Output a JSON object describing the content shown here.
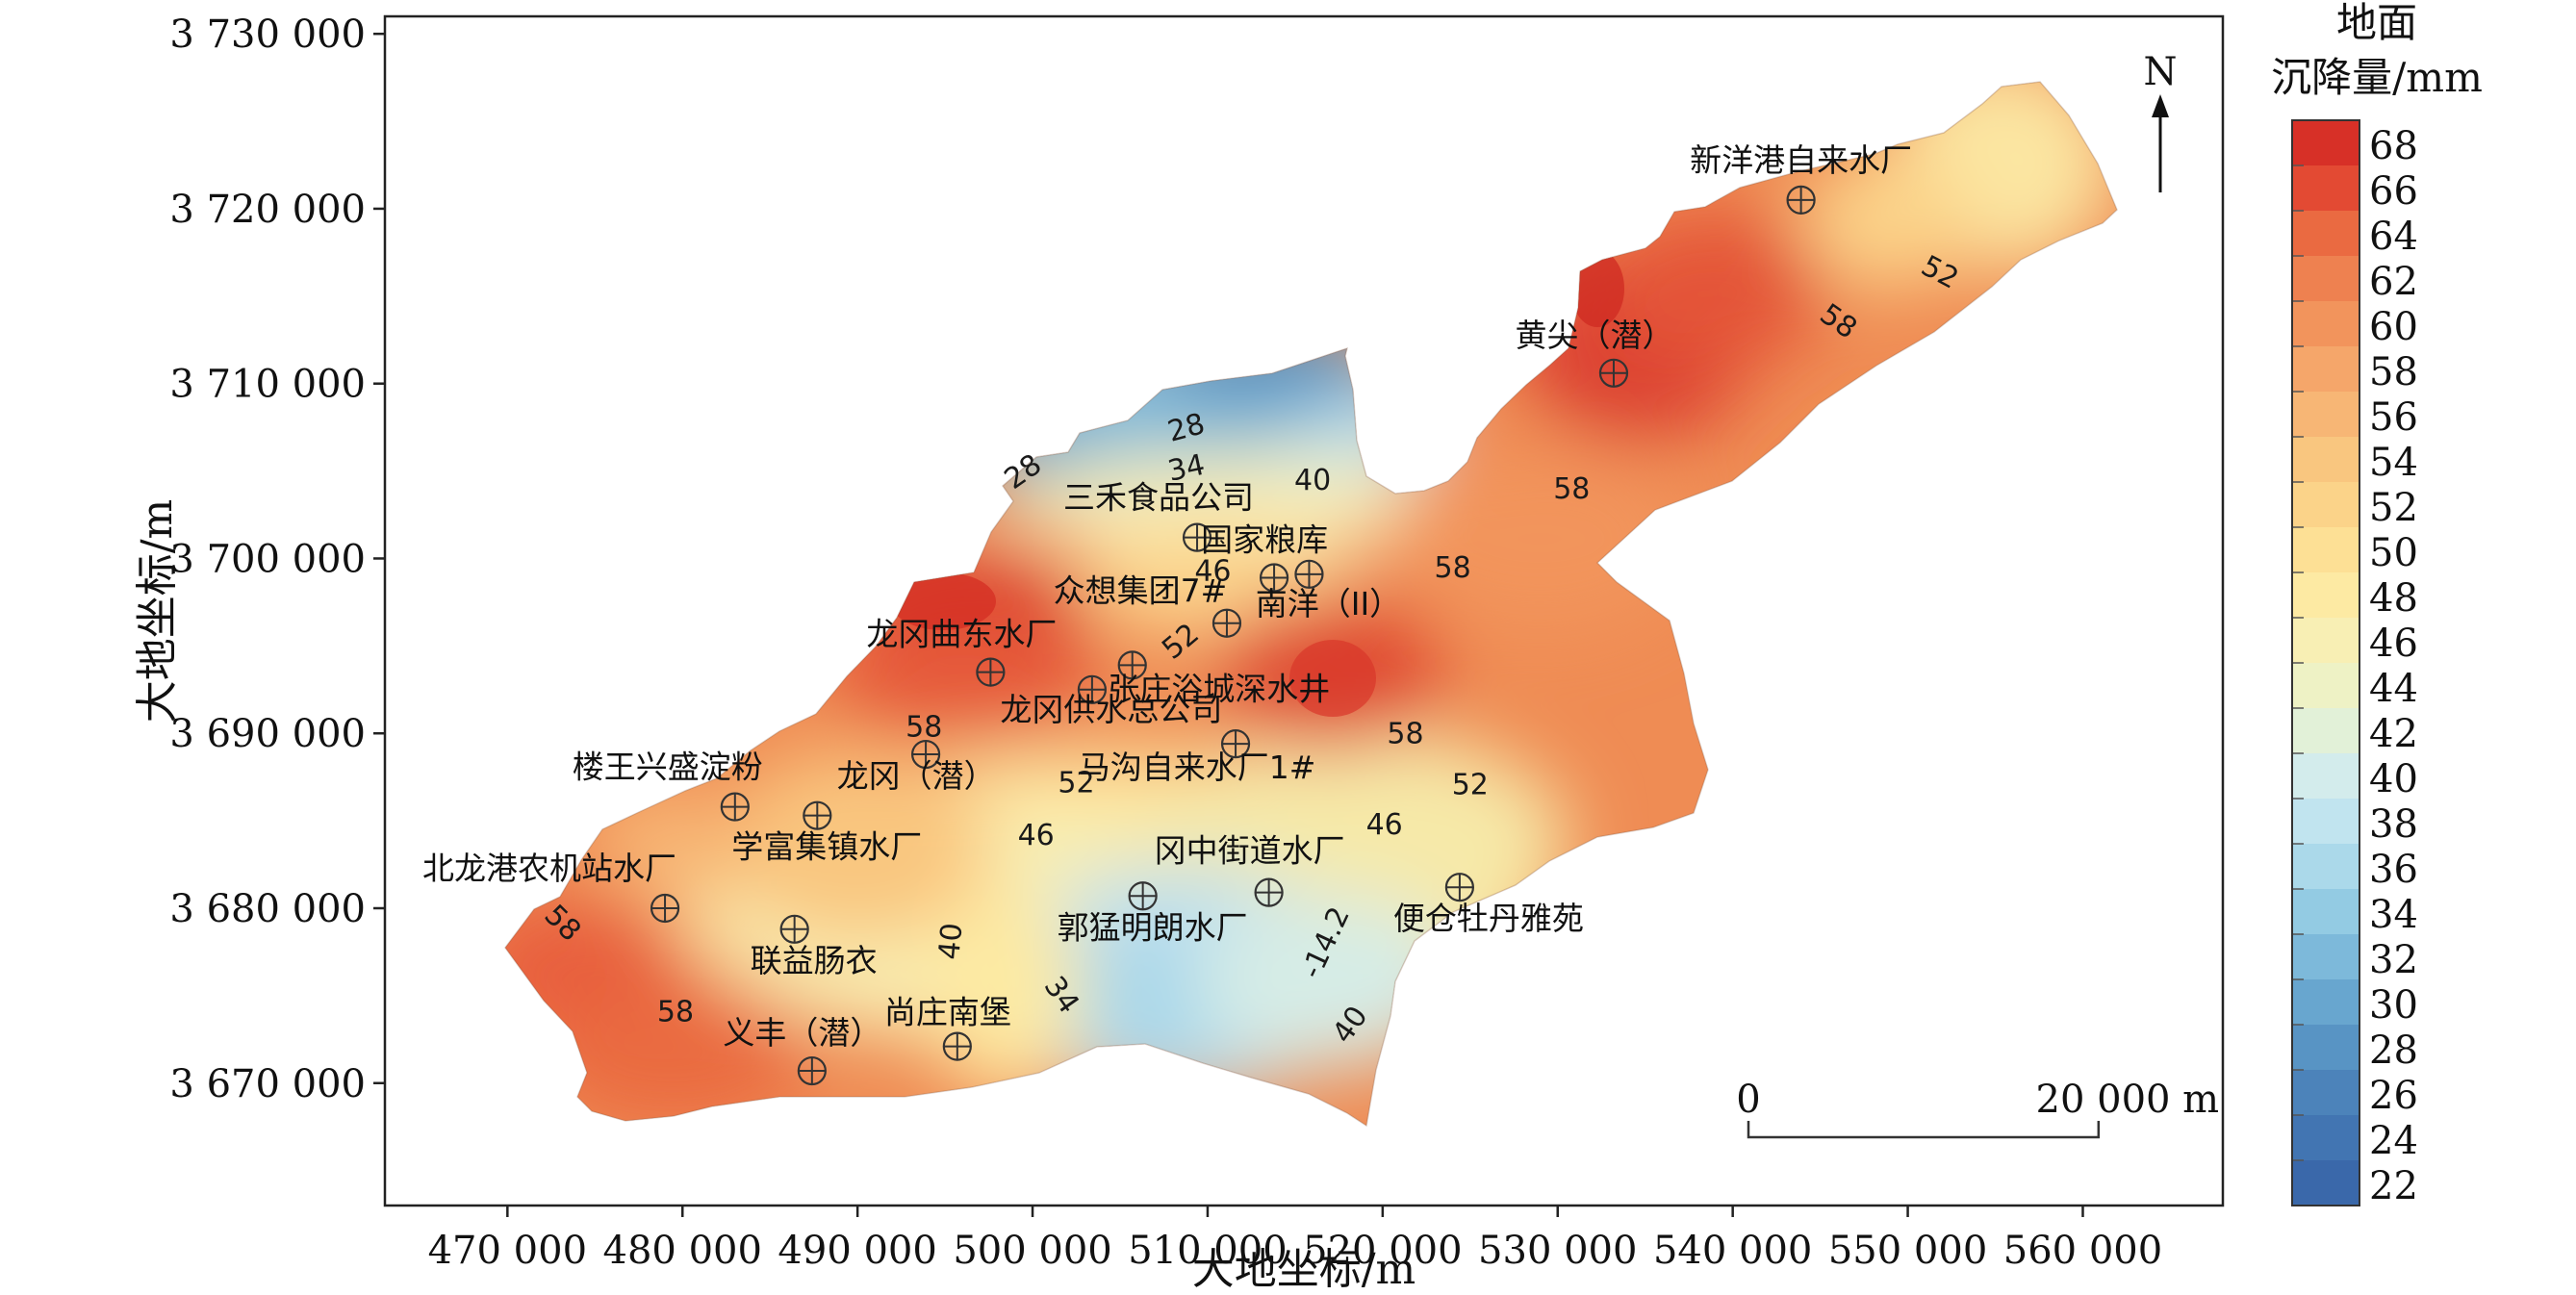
{
  "axes": {
    "x_title": "大地坐标/m",
    "y_title": "大地坐标/m",
    "x_ticks": [
      "470 000",
      "480 000",
      "490 000",
      "500 000",
      "510 000",
      "520 000",
      "530 000",
      "540 000",
      "550 000",
      "560 000"
    ],
    "x_tick_values": [
      470000,
      480000,
      490000,
      500000,
      510000,
      520000,
      530000,
      540000,
      550000,
      560000
    ],
    "y_ticks": [
      "3 730 000",
      "3 720 000",
      "3 710 000",
      "3 700 000",
      "3 690 000",
      "3 680 000",
      "3 670 000"
    ],
    "y_tick_values": [
      3730000,
      3720000,
      3710000,
      3700000,
      3690000,
      3680000,
      3670000
    ],
    "x_range": [
      463000,
      568000
    ],
    "y_range": [
      3663000,
      3731000
    ]
  },
  "north_arrow": {
    "label": "N"
  },
  "scale_bar": {
    "start_label": "0",
    "end_label": "20 000 m",
    "length_m": 20000
  },
  "legend": {
    "title_line1": "地面",
    "title_line2": "沉降量/mm",
    "labels": [
      "68",
      "66",
      "64",
      "62",
      "60",
      "58",
      "56",
      "54",
      "52",
      "50",
      "48",
      "46",
      "44",
      "42",
      "40",
      "38",
      "36",
      "34",
      "32",
      "30",
      "28",
      "26",
      "24",
      "22"
    ],
    "colors": [
      "#d73027",
      "#e34a33",
      "#ea6a41",
      "#ee8150",
      "#f2945c",
      "#f5a66a",
      "#f7b675",
      "#f9c67f",
      "#fbd389",
      "#fde095",
      "#fdeaa3",
      "#f8efb4",
      "#eef2c5",
      "#e2f1d8",
      "#d3ecec",
      "#c1e4ef",
      "#abd9ea",
      "#93cbe3",
      "#7db9da",
      "#68a6cf",
      "#5894c4",
      "#4c83ba",
      "#4275b2",
      "#3a68aa"
    ]
  },
  "stations": [
    {
      "name": "新洋港自来水厂",
      "x": 543900,
      "y": 3720500
    },
    {
      "name": "黄尖（潜）",
      "x": 533200,
      "y": 3710600
    },
    {
      "name": "三禾食品公司",
      "x": 509400,
      "y": 3701200
    },
    {
      "name": "国家粮库",
      "x": 513800,
      "y": 3698900
    },
    {
      "name": "南洋（II）",
      "x": 515800,
      "y": 3699100
    },
    {
      "name": "众想集团7#",
      "x": 511100,
      "y": 3696300
    },
    {
      "name": "龙冈曲东水厂",
      "x": 497600,
      "y": 3693500
    },
    {
      "name": "张庄浴城深水井",
      "x": 505700,
      "y": 3693900
    },
    {
      "name": "龙冈供水总公司",
      "x": 503400,
      "y": 3692500
    },
    {
      "name": "马沟自来水厂1#",
      "x": 511600,
      "y": 3689400
    },
    {
      "name": "龙冈（潜）",
      "x": 493900,
      "y": 3688800
    },
    {
      "name": "楼王兴盛淀粉",
      "x": 483000,
      "y": 3685800
    },
    {
      "name": "学富集镇水厂",
      "x": 487700,
      "y": 3685300
    },
    {
      "name": "冈中街道水厂",
      "x": 513500,
      "y": 3680900
    },
    {
      "name": "郭猛明朗水厂",
      "x": 506300,
      "y": 3680700
    },
    {
      "name": "便仓牡丹雅苑",
      "x": 524400,
      "y": 3681200
    },
    {
      "name": "北龙港农机站水厂",
      "x": 479000,
      "y": 3680000
    },
    {
      "name": "联益肠衣",
      "x": 486400,
      "y": 3678800
    },
    {
      "name": "尚庄南堡",
      "x": 495700,
      "y": 3672100
    },
    {
      "name": "义丰（潜）",
      "x": 487400,
      "y": 3670700
    }
  ],
  "contour_labels": [
    {
      "text": "52",
      "x": 551800,
      "y": 3716300,
      "rotate": 28
    },
    {
      "text": "58",
      "x": 546000,
      "y": 3713500,
      "rotate": 35
    },
    {
      "text": "58",
      "x": 530800,
      "y": 3703900,
      "rotate": 0
    },
    {
      "text": "58",
      "x": 524000,
      "y": 3699400,
      "rotate": 0
    },
    {
      "text": "28",
      "x": 499500,
      "y": 3704900,
      "rotate": -35
    },
    {
      "text": "28",
      "x": 508800,
      "y": 3707400,
      "rotate": -15
    },
    {
      "text": "34",
      "x": 508800,
      "y": 3705100,
      "rotate": -12
    },
    {
      "text": "40",
      "x": 516000,
      "y": 3704400,
      "rotate": 0
    },
    {
      "text": "46",
      "x": 510300,
      "y": 3699200,
      "rotate": 0
    },
    {
      "text": "52",
      "x": 508500,
      "y": 3695200,
      "rotate": -40
    },
    {
      "text": "58",
      "x": 493800,
      "y": 3690300,
      "rotate": 0
    },
    {
      "text": "52",
      "x": 502500,
      "y": 3687100,
      "rotate": 0
    },
    {
      "text": "58",
      "x": 521300,
      "y": 3689900,
      "rotate": 0
    },
    {
      "text": "52",
      "x": 525000,
      "y": 3687000,
      "rotate": 0
    },
    {
      "text": "46",
      "x": 500200,
      "y": 3684100,
      "rotate": 0
    },
    {
      "text": "46",
      "x": 520100,
      "y": 3684700,
      "rotate": 0
    },
    {
      "text": "-14.2",
      "x": 516800,
      "y": 3678000,
      "rotate": -65
    },
    {
      "text": "40",
      "x": 495400,
      "y": 3678100,
      "rotate": -85
    },
    {
      "text": "34",
      "x": 501600,
      "y": 3675000,
      "rotate": 55
    },
    {
      "text": "40",
      "x": 518200,
      "y": 3673300,
      "rotate": -55
    },
    {
      "text": "58",
      "x": 473100,
      "y": 3679100,
      "rotate": 45
    },
    {
      "text": "58",
      "x": 479600,
      "y": 3674000,
      "rotate": 0
    }
  ]
}
